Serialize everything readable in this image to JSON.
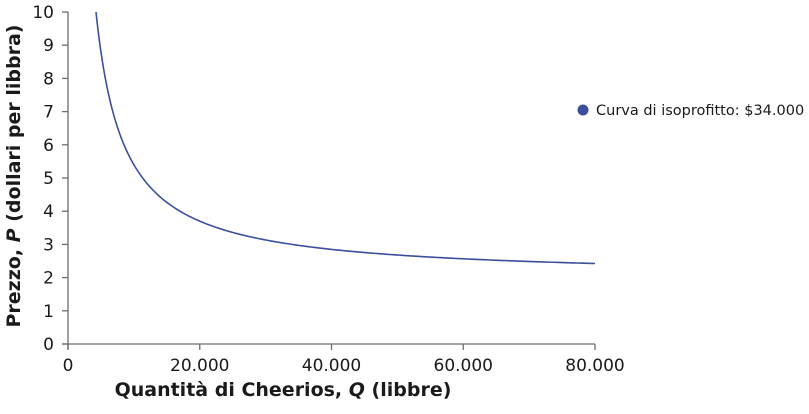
{
  "chart_data": {
    "type": "line",
    "title": "",
    "xlabel": "Quantità di Cheerios, Q (libbre)",
    "xlabel_parts": {
      "before": "Quantità di Cheerios, ",
      "var": "Q",
      "after": " (libbre)"
    },
    "ylabel": "Prezzo, P (dollari per libbra)",
    "ylabel_parts": {
      "before": "Prezzo, ",
      "var": "P",
      "after": " (dollari per libbra)"
    },
    "xlim": [
      0,
      80000
    ],
    "ylim": [
      0,
      10
    ],
    "x_ticks": [
      0,
      20000,
      40000,
      60000,
      80000
    ],
    "x_tick_labels": [
      "0",
      "20.000",
      "40.000",
      "60.000",
      "80.000"
    ],
    "y_ticks": [
      0,
      1,
      2,
      3,
      4,
      5,
      6,
      7,
      8,
      9,
      10
    ],
    "y_tick_labels": [
      "0",
      "1",
      "2",
      "3",
      "4",
      "5",
      "6",
      "7",
      "8",
      "9",
      "10"
    ],
    "grid": false,
    "legend_position": "right",
    "series": [
      {
        "name": "Curva di isoprofitto: $34.000",
        "color": "#3b4f9e",
        "profit": 34000,
        "unit_cost": 2,
        "x": [
          4250,
          5000,
          6000,
          7000,
          8000,
          10000,
          12000,
          15000,
          20000,
          25000,
          30000,
          40000,
          50000,
          60000,
          70000,
          80000
        ],
        "values": [
          10.0,
          8.8,
          7.67,
          6.86,
          6.25,
          5.4,
          4.83,
          4.27,
          3.7,
          3.36,
          3.13,
          2.85,
          2.68,
          2.57,
          2.49,
          2.43
        ]
      }
    ]
  },
  "legend": {
    "label": "Curva di isoprofitto: $34.000",
    "marker_color": "#3b4f9e"
  }
}
